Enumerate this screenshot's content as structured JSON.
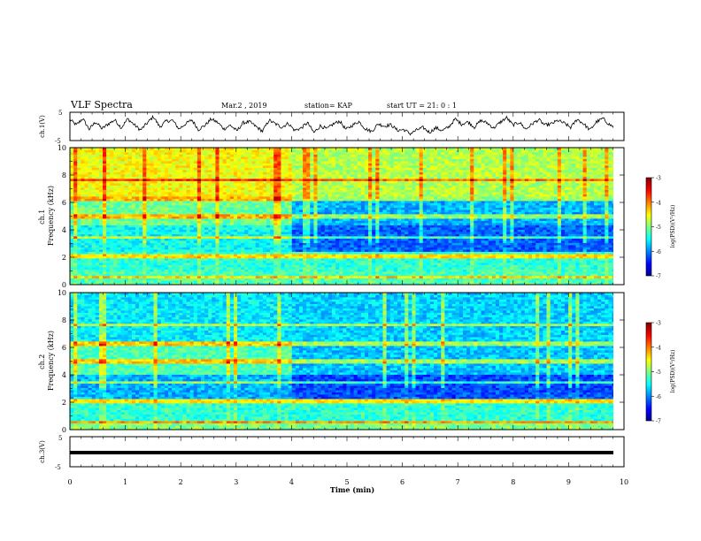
{
  "header": {
    "title": "VLF Spectra",
    "date": "Mar.2 , 2019",
    "station": "station= KAP",
    "start": "start UT = 21: 0 : 1"
  },
  "chart_data": [
    {
      "type": "line",
      "ylabel": "ch.1(V)",
      "ylim": [
        -5,
        5
      ],
      "yticks": [
        "5",
        "-5"
      ],
      "xlim": [
        0,
        9.85
      ],
      "style": "noisy waveform",
      "series": [
        {
          "values": [
            2.4,
            0.5,
            2.8,
            -1.0,
            1.6,
            -0.8,
            0.9,
            2.3,
            -0.5,
            2.7,
            0.6,
            -1.3,
            1.1,
            3.5,
            -0.2,
            1.9,
            2.1,
            -0.9,
            0.9,
            2.3,
            -1.1,
            0.3,
            2.6,
            1.4,
            -0.9,
            0.4,
            -1.6,
            1.3,
            1.6,
            -0.1,
            -1.7,
            2.2,
            0.9,
            -0.3,
            1.1,
            -1.4,
            -0.6,
            1.3,
            -2.2,
            0.2,
            -0.9,
            0.8,
            1.9,
            -1.1,
            0.4,
            1.7,
            -0.8,
            -1.8,
            0.9,
            0.1,
            0.6,
            -1.4,
            -1.1,
            -2.6,
            -1.3,
            -0.4,
            -2.1,
            -0.5,
            -1.5,
            -0.2,
            2.6,
            0.8,
            1.6,
            -0.3,
            2.1,
            1.2,
            -0.6,
            1.4,
            3.1,
            0.5,
            1.5,
            -1.0,
            0.9,
            2.4,
            0.4,
            0.9,
            2.1,
            1.1,
            -0.4,
            2.6,
            0.9,
            -1.3,
            1.6,
            2.8,
            0.7,
            -0.6
          ]
        }
      ]
    },
    {
      "type": "heatmap",
      "ylabel": "ch.1\nFrequency (kHz)",
      "ylim": [
        0,
        10
      ],
      "yticks": [
        "0",
        "2",
        "4",
        "6",
        "8",
        "10"
      ],
      "xlim": [
        0,
        9.85
      ],
      "colorbar": {
        "label": "log(PSD)(V²/Hz)",
        "range": [
          -7,
          -3
        ],
        "ticks": [
          "-3",
          "-4",
          "-5",
          "-6",
          "-7"
        ]
      },
      "change_time": 4.0
    },
    {
      "type": "heatmap",
      "ylabel": "ch.2\nFrequency (kHz)",
      "ylim": [
        0,
        10
      ],
      "yticks": [
        "0",
        "2",
        "4",
        "6",
        "8",
        "10"
      ],
      "xlim": [
        0,
        9.85
      ],
      "colorbar": {
        "label": "log(PSD)(V²/Hz)",
        "range": [
          -7,
          -3
        ],
        "ticks": [
          "-3",
          "-4",
          "-5",
          "-6",
          "-7"
        ]
      },
      "change_time": 4.0
    },
    {
      "type": "line",
      "ylabel": "ch.3(V)",
      "ylim": [
        -5,
        5
      ],
      "yticks": [
        "5",
        "-5"
      ],
      "xlim": [
        0,
        9.85
      ],
      "series": [
        {
          "values": [
            0.0,
            0.0
          ]
        }
      ]
    }
  ],
  "xaxis": {
    "label": "Time (min)",
    "ticks": [
      "0",
      "1",
      "2",
      "3",
      "4",
      "5",
      "6",
      "7",
      "8",
      "9",
      "10"
    ],
    "range": [
      0,
      10
    ]
  },
  "colors": {
    "frame": "#000000",
    "background": "#ffffff"
  }
}
